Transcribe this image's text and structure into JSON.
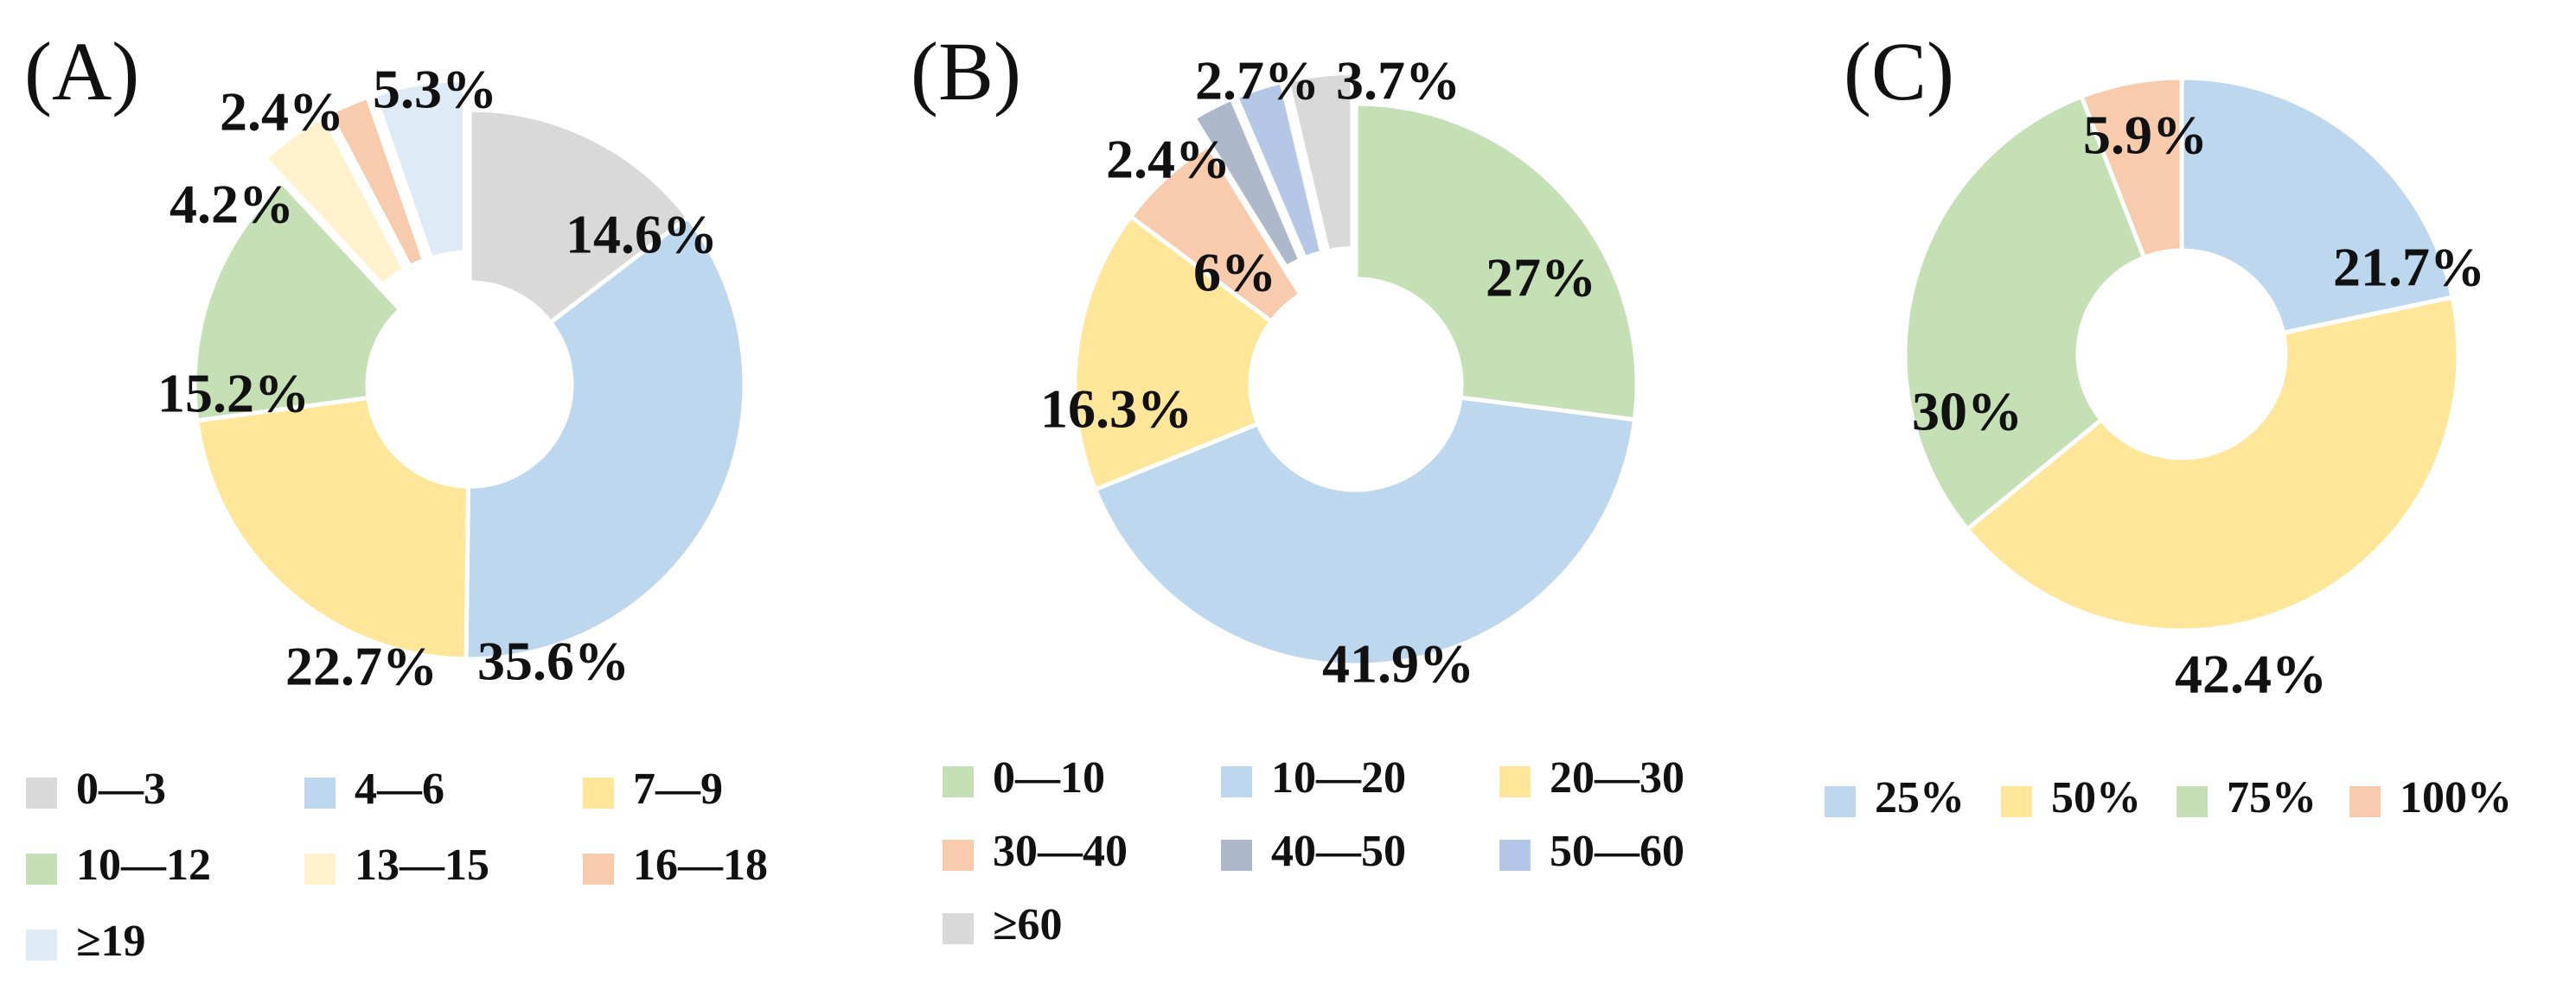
{
  "chart_data": [
    {
      "type": "pie",
      "panel_label": "(A)",
      "categories": [
        "0—3",
        "4—6",
        "7—9",
        "10—12",
        "13—15",
        "16—18",
        "≥19"
      ],
      "values": [
        14.6,
        35.6,
        22.7,
        15.2,
        4.2,
        2.4,
        5.3
      ],
      "data_labels": [
        "14.6%",
        "35.6%",
        "22.7%",
        "15.2%",
        "4.2%",
        "2.4%",
        "5.3%"
      ],
      "exploded": [
        false,
        false,
        false,
        false,
        true,
        true,
        true
      ],
      "colors": [
        "#d9d9d9",
        "#bdd7ee",
        "#ffe699",
        "#c5e0b4",
        "#fff2cc",
        "#f8cbad",
        "#deebf7"
      ],
      "legend_placement": "bottom"
    },
    {
      "type": "pie",
      "panel_label": "(B)",
      "categories": [
        "0—10",
        "10—20",
        "20—30",
        "30—40",
        "40—50",
        "50—60",
        "≥60"
      ],
      "values": [
        27,
        41.9,
        16.3,
        6,
        2.4,
        2.7,
        3.7
      ],
      "data_labels": [
        "27%",
        "41.9%",
        "16.3%",
        "6%",
        "2.4%",
        "2.7%",
        "3.7%"
      ],
      "exploded": [
        false,
        false,
        false,
        false,
        true,
        true,
        true
      ],
      "colors": [
        "#c5e0b4",
        "#bdd7ee",
        "#ffe699",
        "#f8cbad",
        "#adb9ca",
        "#b4c7e7",
        "#d9d9d9"
      ],
      "legend_placement": "bottom"
    },
    {
      "type": "pie",
      "panel_label": "(C)",
      "categories": [
        "25%",
        "50%",
        "75%",
        "100%"
      ],
      "values": [
        21.7,
        42.4,
        30,
        5.9
      ],
      "data_labels": [
        "21.7%",
        "42.4%",
        "30%",
        "5.9%"
      ],
      "exploded": [
        false,
        false,
        false,
        false
      ],
      "colors": [
        "#bdd7ee",
        "#ffe699",
        "#c5e0b4",
        "#f8cbad"
      ],
      "legend_placement": "bottom"
    }
  ]
}
